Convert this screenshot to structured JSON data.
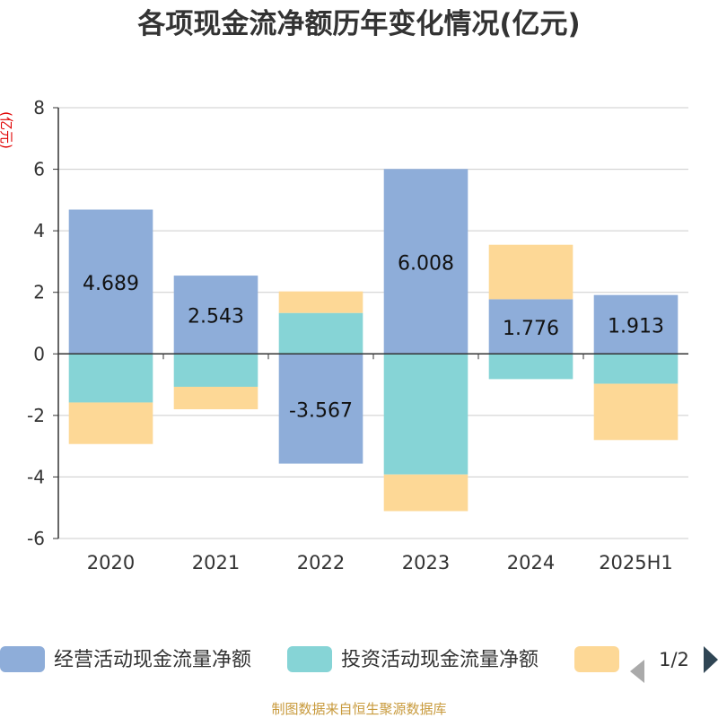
{
  "chart_data": {
    "type": "bar",
    "stacked": true,
    "title": "各项现金流净额历年变化情况(亿元)",
    "ylabel": "(亿元)",
    "categories": [
      "2020",
      "2021",
      "2022",
      "2023",
      "2024",
      "2025H1"
    ],
    "ylim": [
      -6,
      8
    ],
    "yticks": [
      -6,
      -4,
      -2,
      0,
      2,
      4,
      6,
      8
    ],
    "grid": true,
    "legend_position": "bottom",
    "series": [
      {
        "name": "经营活动现金流量净额",
        "color": "#8eadd9",
        "values": [
          4.689,
          2.543,
          -3.567,
          6.008,
          1.776,
          1.913
        ],
        "show_labels": true
      },
      {
        "name": "投资活动现金流量净额",
        "color": "#86d4d6",
        "values": [
          -1.58,
          -1.07,
          1.33,
          -3.92,
          -0.82,
          -0.97
        ],
        "show_labels": false
      },
      {
        "name": "",
        "color": "#fdd896",
        "values": [
          -1.35,
          -0.73,
          0.7,
          -1.19,
          1.77,
          -1.83
        ],
        "show_labels": false
      }
    ],
    "legend": {
      "page": "1/2"
    },
    "source": "制图数据来自恒生聚源数据库"
  }
}
